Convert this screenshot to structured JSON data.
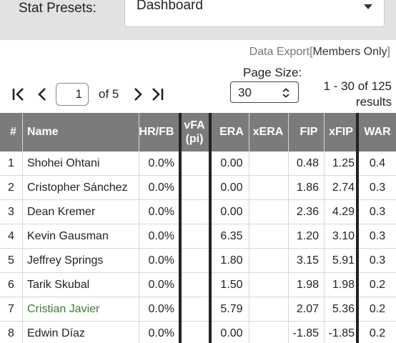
{
  "preset": {
    "label": "Stat Presets:",
    "selected": "Dashboard"
  },
  "export": {
    "link": "Data Export",
    "members": "Members Only"
  },
  "pager": {
    "current_page": "1",
    "of_pages": "of 5"
  },
  "page_size": {
    "label": "Page Size:",
    "value": "30"
  },
  "results": {
    "range": "1 - 30 of 125",
    "word": "results"
  },
  "table": {
    "headers": {
      "rank": "#",
      "name": "Name",
      "hrfb": "HR/FB",
      "vfa_top": "vFA",
      "vfa_bottom": "(pi)",
      "era": "ERA",
      "xera": "xERA",
      "fip": "FIP",
      "xfip": "xFIP",
      "war": "WAR"
    },
    "rows": [
      {
        "rank": "1",
        "name": "Shohei Ohtani",
        "hrfb": "0.0%",
        "vfa": "",
        "era": "0.00",
        "xera": "",
        "fip": "0.48",
        "xfip": "1.25",
        "war": "0.4",
        "highlight": false
      },
      {
        "rank": "2",
        "name": "Cristopher Sánchez",
        "hrfb": "0.0%",
        "vfa": "",
        "era": "0.00",
        "xera": "",
        "fip": "1.86",
        "xfip": "2.74",
        "war": "0.3",
        "highlight": false
      },
      {
        "rank": "3",
        "name": "Dean Kremer",
        "hrfb": "0.0%",
        "vfa": "",
        "era": "0.00",
        "xera": "",
        "fip": "2.36",
        "xfip": "4.29",
        "war": "0.3",
        "highlight": false
      },
      {
        "rank": "4",
        "name": "Kevin Gausman",
        "hrfb": "0.0%",
        "vfa": "",
        "era": "6.35",
        "xera": "",
        "fip": "1.20",
        "xfip": "3.10",
        "war": "0.3",
        "highlight": false
      },
      {
        "rank": "5",
        "name": "Jeffrey Springs",
        "hrfb": "0.0%",
        "vfa": "",
        "era": "1.80",
        "xera": "",
        "fip": "3.15",
        "xfip": "5.91",
        "war": "0.3",
        "highlight": false
      },
      {
        "rank": "6",
        "name": "Tarik Skubal",
        "hrfb": "0.0%",
        "vfa": "",
        "era": "1.50",
        "xera": "",
        "fip": "1.98",
        "xfip": "1.98",
        "war": "0.2",
        "highlight": false
      },
      {
        "rank": "7",
        "name": "Cristian Javier",
        "hrfb": "0.0%",
        "vfa": "",
        "era": "5.79",
        "xera": "",
        "fip": "2.07",
        "xfip": "5.36",
        "war": "0.2",
        "highlight": true
      },
      {
        "rank": "8",
        "name": "Edwin Díaz",
        "hrfb": "0.0%",
        "vfa": "",
        "era": "0.00",
        "xera": "",
        "fip": "-1.85",
        "xfip": "-1.85",
        "war": "0.2",
        "highlight": false
      }
    ]
  },
  "colors": {
    "header_bg": "#7b7b7b",
    "link_green": "#3c7a32",
    "top_bar": "#e2e2e2"
  },
  "icons": [
    "first-page-icon",
    "prev-page-icon",
    "next-page-icon",
    "last-page-icon",
    "caret-down-icon",
    "updown-chevron-icon"
  ]
}
